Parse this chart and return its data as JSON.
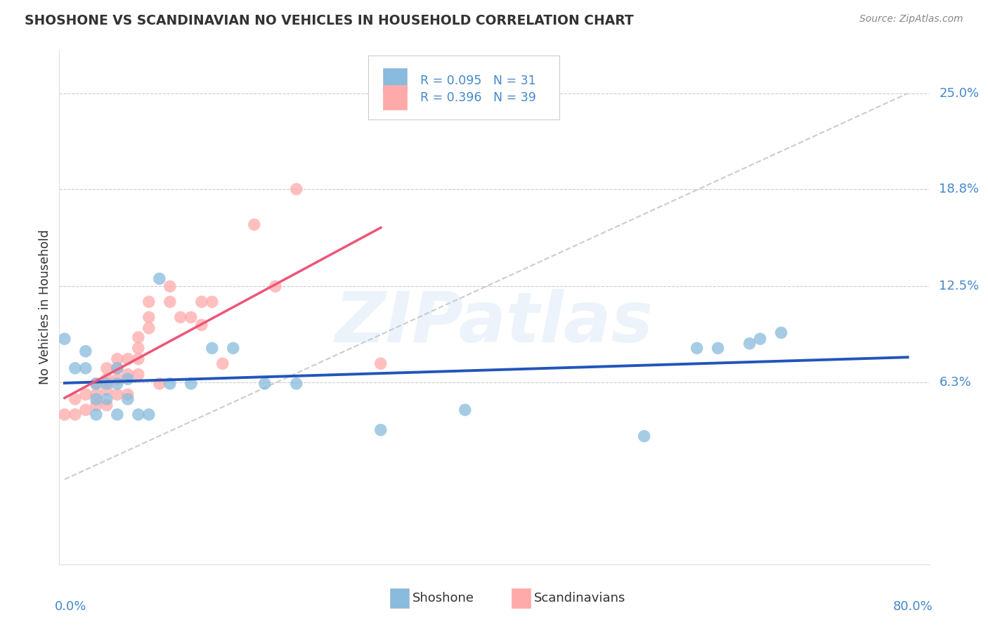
{
  "title": "SHOSHONE VS SCANDINAVIAN NO VEHICLES IN HOUSEHOLD CORRELATION CHART",
  "source": "Source: ZipAtlas.com",
  "ylabel": "No Vehicles in Household",
  "ytick_labels": [
    "6.3%",
    "12.5%",
    "18.8%",
    "25.0%"
  ],
  "ytick_values": [
    0.063,
    0.125,
    0.188,
    0.25
  ],
  "xlim": [
    -0.005,
    0.82
  ],
  "ylim": [
    -0.055,
    0.278
  ],
  "legend_blue_r": "R = 0.095",
  "legend_blue_n": "N = 31",
  "legend_pink_r": "R = 0.396",
  "legend_pink_n": "N = 39",
  "legend_label_blue": "Shoshone",
  "legend_label_pink": "Scandinavians",
  "blue_scatter_color": "#88BBDD",
  "pink_scatter_color": "#FFAAAA",
  "blue_line_color": "#2255BB",
  "pink_line_color": "#EE5577",
  "grid_color": "#CCCCCC",
  "title_color": "#333333",
  "axis_label_color": "#4488CC",
  "ref_line_color": "#CCCCCC",
  "shoshone_x": [
    0.0,
    0.01,
    0.02,
    0.02,
    0.03,
    0.03,
    0.03,
    0.04,
    0.04,
    0.05,
    0.05,
    0.05,
    0.06,
    0.06,
    0.07,
    0.08,
    0.09,
    0.1,
    0.12,
    0.14,
    0.16,
    0.19,
    0.22,
    0.3,
    0.38,
    0.55,
    0.6,
    0.62,
    0.65,
    0.66,
    0.68
  ],
  "shoshone_y": [
    0.091,
    0.072,
    0.072,
    0.083,
    0.062,
    0.052,
    0.042,
    0.062,
    0.052,
    0.072,
    0.062,
    0.042,
    0.065,
    0.052,
    0.042,
    0.042,
    0.13,
    0.062,
    0.062,
    0.085,
    0.085,
    0.062,
    0.062,
    0.032,
    0.045,
    0.028,
    0.085,
    0.085,
    0.088,
    0.091,
    0.095
  ],
  "scandinavian_x": [
    0.0,
    0.01,
    0.01,
    0.02,
    0.02,
    0.03,
    0.03,
    0.03,
    0.04,
    0.04,
    0.04,
    0.04,
    0.05,
    0.05,
    0.05,
    0.05,
    0.06,
    0.06,
    0.06,
    0.07,
    0.07,
    0.07,
    0.07,
    0.08,
    0.08,
    0.08,
    0.09,
    0.1,
    0.1,
    0.11,
    0.12,
    0.13,
    0.13,
    0.14,
    0.15,
    0.18,
    0.2,
    0.22,
    0.3
  ],
  "scandinavian_y": [
    0.042,
    0.052,
    0.042,
    0.055,
    0.045,
    0.062,
    0.055,
    0.048,
    0.072,
    0.065,
    0.058,
    0.048,
    0.078,
    0.072,
    0.065,
    0.055,
    0.078,
    0.068,
    0.055,
    0.092,
    0.085,
    0.078,
    0.068,
    0.115,
    0.105,
    0.098,
    0.062,
    0.125,
    0.115,
    0.105,
    0.105,
    0.115,
    0.1,
    0.115,
    0.075,
    0.165,
    0.125,
    0.188,
    0.075
  ],
  "ref_line_x": [
    0.0,
    0.8
  ],
  "ref_line_y": [
    0.0,
    0.25
  ]
}
